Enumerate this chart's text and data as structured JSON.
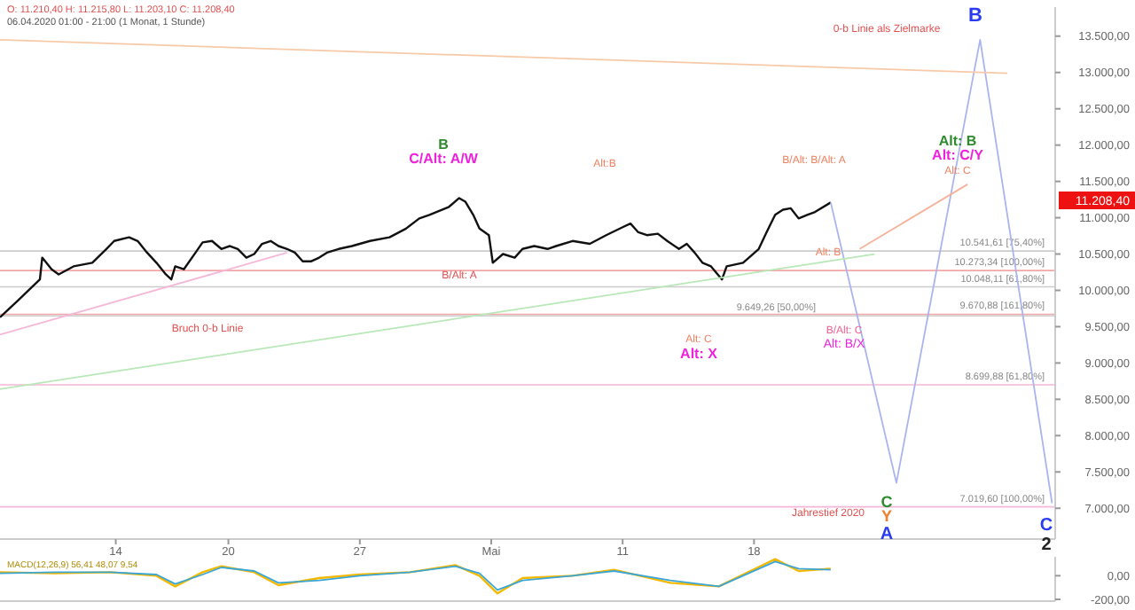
{
  "chart_data": [
    {
      "type": "line",
      "title": "O: 11.210,40  H: 11.215,80  L: 11.203,10  C: 11.208,40",
      "subtitle": "06.04.2020 01:00 - 21:00  (1 Monat, 1 Stunde)",
      "xlim": [
        "2020-04-07T20:00",
        "2020-06-03T01:00"
      ],
      "ylim": [
        6600,
        13900
      ],
      "xticks": [
        {
          "value": "2020-04-14",
          "label": "14"
        },
        {
          "value": "2020-04-20",
          "label": "20"
        },
        {
          "value": "2020-04-27",
          "label": "27"
        },
        {
          "value": "2020-05-04",
          "label": "Mai"
        },
        {
          "value": "2020-05-11",
          "label": "11"
        },
        {
          "value": "2020-05-18",
          "label": "18"
        }
      ],
      "yticks": [
        {
          "value": 7000,
          "label": "7.000,00"
        },
        {
          "value": 7500,
          "label": "7.500,00"
        },
        {
          "value": 8000,
          "label": "8.000,00"
        },
        {
          "value": 8500,
          "label": "8.500,00"
        },
        {
          "value": 9000,
          "label": "9.000,00"
        },
        {
          "value": 9500,
          "label": "9.500,00"
        },
        {
          "value": 10000,
          "label": "10.000,00"
        },
        {
          "value": 10500,
          "label": "10.500,00"
        },
        {
          "value": 11000,
          "label": "11.000,00"
        },
        {
          "value": 11500,
          "label": "11.500,00"
        },
        {
          "value": 12000,
          "label": "12.000,00"
        },
        {
          "value": 12500,
          "label": "12.500,00"
        },
        {
          "value": 13000,
          "label": "13.000,00"
        },
        {
          "value": 13500,
          "label": "13.500,00"
        }
      ],
      "grid": false,
      "series": [
        {
          "color": "#111111",
          "x": [
            "2020-04-07T20:00",
            "2020-04-08T19:00",
            "2020-04-09T23:00",
            "2020-04-10T02:00",
            "2020-04-10T14:00",
            "2020-04-10T23:00",
            "2020-04-11T18:00",
            "2020-04-12T18:00",
            "2020-04-13T12:00",
            "2020-04-13T22:00",
            "2020-04-14T17:00",
            "2020-04-15T04:00",
            "2020-04-15T16:00",
            "2020-04-16T04:00",
            "2020-04-16T16:00",
            "2020-04-16T23:00",
            "2020-04-17T04:00",
            "2020-04-17T15:00",
            "2020-04-18T06:00",
            "2020-04-18T15:00",
            "2020-04-19T03:00",
            "2020-04-19T15:00",
            "2020-04-20T02:00",
            "2020-04-20T12:00",
            "2020-04-20T23:00",
            "2020-04-21T09:00",
            "2020-04-21T19:00",
            "2020-04-22T06:00",
            "2020-04-22T16:00",
            "2020-04-23T03:00",
            "2020-04-23T13:00",
            "2020-04-23T23:00",
            "2020-04-24T10:00",
            "2020-04-24T20:00",
            "2020-04-25T06:00",
            "2020-04-25T21:00",
            "2020-04-26T14:00",
            "2020-04-27T13:00",
            "2020-04-28T14:00",
            "2020-04-29T11:00",
            "2020-04-30T04:00",
            "2020-04-30T17:00",
            "2020-05-01T18:00",
            "2020-05-02T07:00",
            "2020-05-02T15:00",
            "2020-05-03T01:00",
            "2020-05-03T09:00",
            "2020-05-03T21:00",
            "2020-05-04T02:00",
            "2020-05-04T15:00",
            "2020-05-05T06:00",
            "2020-05-05T16:00",
            "2020-05-06T07:00",
            "2020-05-07T00:00",
            "2020-05-07T11:00",
            "2020-05-08T08:00",
            "2020-05-09T06:00",
            "2020-05-10T03:00",
            "2020-05-11T00:00",
            "2020-05-11T10:00",
            "2020-05-11T20:00",
            "2020-05-12T07:00",
            "2020-05-12T21:00",
            "2020-05-13T09:00",
            "2020-05-14T00:00",
            "2020-05-14T10:00",
            "2020-05-14T20:00",
            "2020-05-15T06:00",
            "2020-05-15T17:00",
            "2020-05-16T07:00",
            "2020-05-16T13:00",
            "2020-05-17T10:00",
            "2020-05-18T06:00",
            "2020-05-18T16:00",
            "2020-05-19T03:00",
            "2020-05-19T13:00",
            "2020-05-19T23:00",
            "2020-05-20T09:00",
            "2020-05-20T20:00",
            "2020-05-21T06:00",
            "2020-05-22T02:00"
          ],
          "values": [
            9630,
            9860,
            10150,
            10450,
            10290,
            10220,
            10330,
            10380,
            10570,
            10680,
            10730,
            10680,
            10520,
            10380,
            10220,
            10150,
            10330,
            10290,
            10520,
            10660,
            10680,
            10570,
            10610,
            10570,
            10450,
            10500,
            10640,
            10680,
            10610,
            10570,
            10520,
            10400,
            10400,
            10450,
            10520,
            10570,
            10610,
            10680,
            10730,
            10850,
            10990,
            11040,
            11150,
            11270,
            11220,
            11040,
            10850,
            10760,
            10380,
            10500,
            10450,
            10570,
            10610,
            10570,
            10610,
            10680,
            10640,
            10760,
            10870,
            10920,
            10800,
            10760,
            10780,
            10680,
            10570,
            10640,
            10520,
            10380,
            10330,
            10150,
            10330,
            10380,
            10570,
            10800,
            11040,
            11110,
            11130,
            10990,
            11040,
            11080,
            11210
          ]
        },
        {
          "color": "#aab4ee",
          "x": [
            "2020-05-22T02:00",
            "2020-05-25T14:00",
            "2020-05-30T01:00",
            "2020-06-02T21:00"
          ],
          "values": [
            11210,
            7350,
            13450,
            7070
          ]
        },
        {
          "color": "#f4b39a",
          "x": [
            "2020-05-23T15:00",
            "2020-05-29T09:00"
          ],
          "values": [
            10570,
            11460
          ]
        },
        {
          "color": "#f8c9a8",
          "x": [
            "2020-04-07T20:00",
            "2020-05-31T12:00"
          ],
          "values": [
            13450,
            12990
          ]
        },
        {
          "color": "#f6b6d8",
          "x": [
            "2020-04-07T20:00",
            "2020-04-23T03:00"
          ],
          "values": [
            9390,
            10520
          ]
        },
        {
          "color": "#b8e8b8",
          "x": [
            "2020-04-07T20:00",
            "2020-05-24T10:00"
          ],
          "values": [
            8640,
            10500
          ]
        }
      ],
      "ref_lines": [
        {
          "axis": "y",
          "value": 10541.61,
          "label": "10.541,61 [75,40%]",
          "color": "#cccccc"
        },
        {
          "axis": "y",
          "value": 10273.34,
          "label": "10.273,34 [100,00%]",
          "color": "#f4a6a6"
        },
        {
          "axis": "y",
          "value": 10048.11,
          "label": "10.048,11 [61,80%]",
          "color": "#cccccc"
        },
        {
          "axis": "y",
          "value": 9670.88,
          "label": "9.670,88 [161,80%]",
          "color": "#f4a6a6"
        },
        {
          "axis": "y",
          "value": 9649.26,
          "label": "9.649,26 [50,00%]",
          "color": "#cccccc"
        },
        {
          "axis": "y",
          "value": 8699.88,
          "label": "8.699,88 [61,80%]",
          "color": "#f6b6d8"
        },
        {
          "axis": "y",
          "value": 7019.6,
          "label": "7.019,60 [100,00%]",
          "color": "#f6b6d8"
        }
      ],
      "annotations": [
        "B",
        "0-b Linie als Zielmarke",
        "Alt: B",
        "Alt: C/Y",
        "Alt: C",
        "B/Alt: B/Alt: A",
        "Alt: B",
        "B",
        "C/Alt: A/W",
        "Alt:B",
        "B/Alt: A",
        "Alt: C",
        "Alt: X",
        "B/Alt: C",
        "Alt: B/X",
        "Jahrestief 2020",
        "Bruch 0-b Linie",
        "C",
        "Y",
        "A",
        "C",
        "2",
        "11.208,40"
      ]
    },
    {
      "type": "line",
      "title": "MACD(12,26,9)  56,41  48,07  9,54",
      "xlim": [
        "2020-04-07T20:00",
        "2020-06-03T01:00"
      ],
      "ylim": [
        -200,
        160
      ],
      "tick_labels": "y",
      "yticks": [
        {
          "value": 0,
          "label": "0,00"
        },
        {
          "value": -200,
          "label": "-200,00"
        }
      ],
      "x": [
        "2020-04-07T20:00",
        "2020-04-10T18:00",
        "2020-04-13T17:00",
        "2020-04-16T04:00",
        "2020-04-17T04:00",
        "2020-04-18T15:00",
        "2020-04-19T15:00",
        "2020-04-21T09:00",
        "2020-04-22T16:00",
        "2020-04-24T20:00",
        "2020-04-27T00:00",
        "2020-04-29T16:00",
        "2020-05-02T02:00",
        "2020-05-03T09:00",
        "2020-05-04T08:00",
        "2020-05-05T16:00",
        "2020-05-08T08:00",
        "2020-05-10T13:00",
        "2020-05-13T13:00",
        "2020-05-16T03:00",
        "2020-05-19T03:00",
        "2020-05-20T09:00",
        "2020-05-22T02:00"
      ],
      "series": [
        {
          "color": "#f5b800",
          "values": [
            30,
            20,
            30,
            0,
            -90,
            30,
            80,
            30,
            -80,
            -20,
            10,
            30,
            90,
            0,
            -150,
            -20,
            0,
            50,
            -60,
            -90,
            140,
            40,
            60
          ]
        },
        {
          "color": "#3aa6d6",
          "values": [
            20,
            30,
            30,
            10,
            -70,
            10,
            70,
            40,
            -60,
            -40,
            0,
            30,
            80,
            20,
            -120,
            -40,
            0,
            40,
            -40,
            -90,
            120,
            60,
            50
          ]
        }
      ]
    }
  ]
}
